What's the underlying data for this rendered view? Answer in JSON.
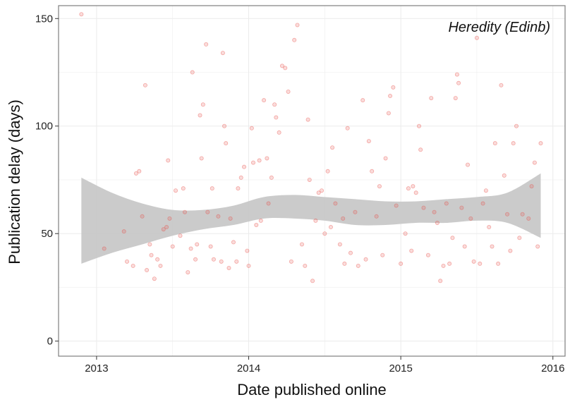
{
  "chart_data": {
    "type": "scatter",
    "annotation": "Heredity (Edinb)",
    "xlabel": "Date published online",
    "ylabel": "Publication delay (days)",
    "x_ticks": [
      "2013",
      "2014",
      "2015",
      "2016"
    ],
    "x_tick_values": [
      2013,
      2014,
      2015,
      2016
    ],
    "y_ticks": [
      "0",
      "50",
      "100",
      "150"
    ],
    "y_tick_values": [
      0,
      50,
      100,
      150
    ],
    "xlim": [
      2012.75,
      2016.08
    ],
    "ylim": [
      -7,
      156
    ],
    "grid": true,
    "colors": {
      "points": "#e8504a",
      "band": "#bfbfbf",
      "grid": "#ebebeb",
      "border": "#7f7f7f"
    },
    "smooth_band": [
      {
        "x": 2012.9,
        "lower": 36,
        "upper": 76
      },
      {
        "x": 2013.1,
        "lower": 41,
        "upper": 69
      },
      {
        "x": 2013.3,
        "lower": 45,
        "upper": 64
      },
      {
        "x": 2013.5,
        "lower": 49,
        "upper": 61
      },
      {
        "x": 2013.7,
        "lower": 52,
        "upper": 61
      },
      {
        "x": 2013.9,
        "lower": 54,
        "upper": 63
      },
      {
        "x": 2014.1,
        "lower": 57,
        "upper": 67
      },
      {
        "x": 2014.3,
        "lower": 57,
        "upper": 68
      },
      {
        "x": 2014.5,
        "lower": 56,
        "upper": 67
      },
      {
        "x": 2014.7,
        "lower": 54,
        "upper": 66
      },
      {
        "x": 2014.9,
        "lower": 54,
        "upper": 65
      },
      {
        "x": 2015.1,
        "lower": 55,
        "upper": 65
      },
      {
        "x": 2015.3,
        "lower": 55,
        "upper": 66
      },
      {
        "x": 2015.5,
        "lower": 56,
        "upper": 67
      },
      {
        "x": 2015.7,
        "lower": 55,
        "upper": 69
      },
      {
        "x": 2015.92,
        "lower": 48,
        "upper": 78
      }
    ],
    "points": [
      [
        2012.9,
        152
      ],
      [
        2013.05,
        43
      ],
      [
        2013.18,
        51
      ],
      [
        2013.2,
        37
      ],
      [
        2013.24,
        35
      ],
      [
        2013.26,
        78
      ],
      [
        2013.28,
        79
      ],
      [
        2013.3,
        58
      ],
      [
        2013.32,
        119
      ],
      [
        2013.33,
        33
      ],
      [
        2013.35,
        45
      ],
      [
        2013.36,
        40
      ],
      [
        2013.38,
        29
      ],
      [
        2013.4,
        38
      ],
      [
        2013.42,
        35
      ],
      [
        2013.44,
        52
      ],
      [
        2013.46,
        53
      ],
      [
        2013.47,
        84
      ],
      [
        2013.48,
        57
      ],
      [
        2013.5,
        44
      ],
      [
        2013.52,
        70
      ],
      [
        2013.55,
        49
      ],
      [
        2013.57,
        71
      ],
      [
        2013.58,
        60
      ],
      [
        2013.6,
        32
      ],
      [
        2013.62,
        43
      ],
      [
        2013.63,
        125
      ],
      [
        2013.65,
        38
      ],
      [
        2013.66,
        45
      ],
      [
        2013.68,
        105
      ],
      [
        2013.69,
        85
      ],
      [
        2013.7,
        110
      ],
      [
        2013.72,
        138
      ],
      [
        2013.73,
        60
      ],
      [
        2013.75,
        44
      ],
      [
        2013.76,
        71
      ],
      [
        2013.77,
        38
      ],
      [
        2013.8,
        58
      ],
      [
        2013.82,
        37
      ],
      [
        2013.83,
        134
      ],
      [
        2013.84,
        100
      ],
      [
        2013.85,
        92
      ],
      [
        2013.87,
        34
      ],
      [
        2013.88,
        57
      ],
      [
        2013.9,
        46
      ],
      [
        2013.92,
        37
      ],
      [
        2013.93,
        71
      ],
      [
        2013.95,
        76
      ],
      [
        2013.97,
        81
      ],
      [
        2013.99,
        42
      ],
      [
        2014.0,
        35
      ],
      [
        2014.02,
        99
      ],
      [
        2014.03,
        83
      ],
      [
        2014.05,
        54
      ],
      [
        2014.07,
        84
      ],
      [
        2014.08,
        56
      ],
      [
        2014.1,
        112
      ],
      [
        2014.12,
        85
      ],
      [
        2014.13,
        64
      ],
      [
        2014.15,
        76
      ],
      [
        2014.17,
        110
      ],
      [
        2014.18,
        104
      ],
      [
        2014.2,
        97
      ],
      [
        2014.22,
        128
      ],
      [
        2014.24,
        127
      ],
      [
        2014.26,
        116
      ],
      [
        2014.28,
        37
      ],
      [
        2014.3,
        140
      ],
      [
        2014.32,
        147
      ],
      [
        2014.35,
        45
      ],
      [
        2014.37,
        35
      ],
      [
        2014.39,
        103
      ],
      [
        2014.4,
        75
      ],
      [
        2014.42,
        28
      ],
      [
        2014.44,
        56
      ],
      [
        2014.46,
        69
      ],
      [
        2014.48,
        70
      ],
      [
        2014.5,
        50
      ],
      [
        2014.52,
        79
      ],
      [
        2014.54,
        53
      ],
      [
        2014.55,
        90
      ],
      [
        2014.57,
        64
      ],
      [
        2014.6,
        45
      ],
      [
        2014.62,
        57
      ],
      [
        2014.63,
        36
      ],
      [
        2014.65,
        99
      ],
      [
        2014.67,
        41
      ],
      [
        2014.7,
        60
      ],
      [
        2014.72,
        35
      ],
      [
        2014.75,
        112
      ],
      [
        2014.77,
        38
      ],
      [
        2014.79,
        93
      ],
      [
        2014.81,
        79
      ],
      [
        2014.84,
        58
      ],
      [
        2014.86,
        72
      ],
      [
        2014.88,
        40
      ],
      [
        2014.9,
        85
      ],
      [
        2014.92,
        106
      ],
      [
        2014.93,
        114
      ],
      [
        2014.95,
        118
      ],
      [
        2014.97,
        63
      ],
      [
        2015.0,
        36
      ],
      [
        2015.03,
        50
      ],
      [
        2015.05,
        71
      ],
      [
        2015.07,
        42
      ],
      [
        2015.08,
        72
      ],
      [
        2015.1,
        69
      ],
      [
        2015.12,
        100
      ],
      [
        2015.13,
        89
      ],
      [
        2015.15,
        62
      ],
      [
        2015.18,
        40
      ],
      [
        2015.2,
        113
      ],
      [
        2015.22,
        60
      ],
      [
        2015.24,
        55
      ],
      [
        2015.26,
        28
      ],
      [
        2015.28,
        35
      ],
      [
        2015.3,
        64
      ],
      [
        2015.32,
        36
      ],
      [
        2015.34,
        48
      ],
      [
        2015.36,
        113
      ],
      [
        2015.37,
        124
      ],
      [
        2015.38,
        120
      ],
      [
        2015.4,
        62
      ],
      [
        2015.42,
        44
      ],
      [
        2015.44,
        82
      ],
      [
        2015.46,
        57
      ],
      [
        2015.48,
        37
      ],
      [
        2015.5,
        141
      ],
      [
        2015.52,
        36
      ],
      [
        2015.54,
        64
      ],
      [
        2015.56,
        70
      ],
      [
        2015.58,
        53
      ],
      [
        2015.6,
        44
      ],
      [
        2015.62,
        92
      ],
      [
        2015.64,
        36
      ],
      [
        2015.66,
        119
      ],
      [
        2015.68,
        77
      ],
      [
        2015.7,
        59
      ],
      [
        2015.72,
        42
      ],
      [
        2015.74,
        92
      ],
      [
        2015.76,
        100
      ],
      [
        2015.78,
        48
      ],
      [
        2015.8,
        59
      ],
      [
        2015.84,
        57
      ],
      [
        2015.86,
        72
      ],
      [
        2015.88,
        83
      ],
      [
        2015.9,
        44
      ],
      [
        2015.92,
        92
      ]
    ]
  }
}
